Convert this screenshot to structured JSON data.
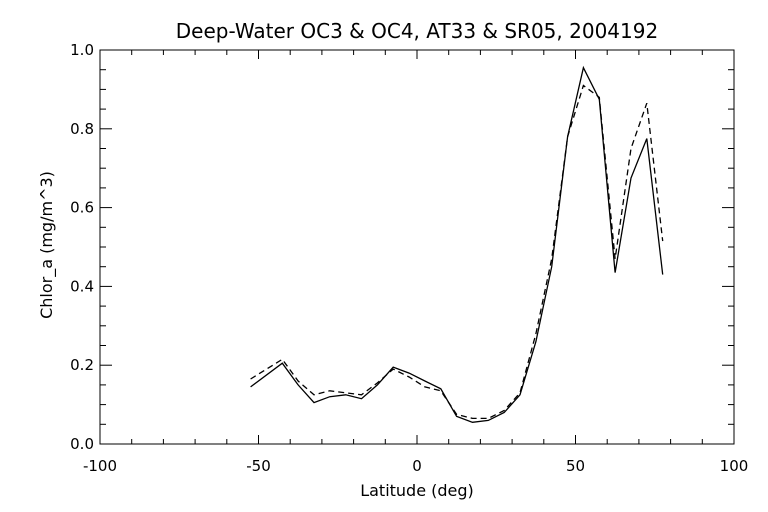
{
  "chart_data": {
    "type": "line",
    "title": "Deep-Water OC3 & OC4, AT33 & SR05, 2004192",
    "xlabel": "Latitude (deg)",
    "ylabel": "Chlor_a (mg/m^3)",
    "xlim": [
      -100,
      100
    ],
    "ylim": [
      0.0,
      1.0
    ],
    "xticks": [
      -100,
      -50,
      0,
      50,
      100
    ],
    "xtick_labels": [
      "-100",
      "-50",
      "0",
      "50",
      "100"
    ],
    "yticks": [
      0.0,
      0.2,
      0.4,
      0.6,
      0.8,
      1.0
    ],
    "ytick_labels": [
      "0.0",
      "0.2",
      "0.4",
      "0.6",
      "0.8",
      "1.0"
    ],
    "grid": false,
    "series": [
      {
        "style": "solid",
        "color": "#000000",
        "x": [
          -52.5,
          -42.5,
          -37.5,
          -32.5,
          -27.5,
          -22.5,
          -17.5,
          -12.5,
          -7.5,
          -2.5,
          2.5,
          7.5,
          12.5,
          17.5,
          22.5,
          27.5,
          32.5,
          37.5,
          42.5,
          47.5,
          52.5,
          57.5,
          62.5,
          67.5,
          72.5,
          77.5
        ],
        "y": [
          0.145,
          0.205,
          0.15,
          0.105,
          0.12,
          0.125,
          0.115,
          0.15,
          0.195,
          0.18,
          0.16,
          0.14,
          0.07,
          0.055,
          0.06,
          0.08,
          0.125,
          0.26,
          0.45,
          0.78,
          0.955,
          0.875,
          0.435,
          0.675,
          0.775,
          0.43
        ]
      },
      {
        "style": "dashed",
        "color": "#000000",
        "x": [
          -52.5,
          -42.5,
          -37.5,
          -32.5,
          -27.5,
          -22.5,
          -17.5,
          -12.5,
          -7.5,
          -2.5,
          2.5,
          7.5,
          12.5,
          17.5,
          22.5,
          27.5,
          32.5,
          37.5,
          42.5,
          47.5,
          52.5,
          57.5,
          62.5,
          67.5,
          72.5,
          77.5
        ],
        "y": [
          0.165,
          0.215,
          0.16,
          0.125,
          0.135,
          0.13,
          0.125,
          0.155,
          0.19,
          0.17,
          0.145,
          0.135,
          0.075,
          0.065,
          0.065,
          0.085,
          0.13,
          0.28,
          0.47,
          0.78,
          0.91,
          0.88,
          0.47,
          0.75,
          0.865,
          0.515
        ]
      }
    ]
  }
}
